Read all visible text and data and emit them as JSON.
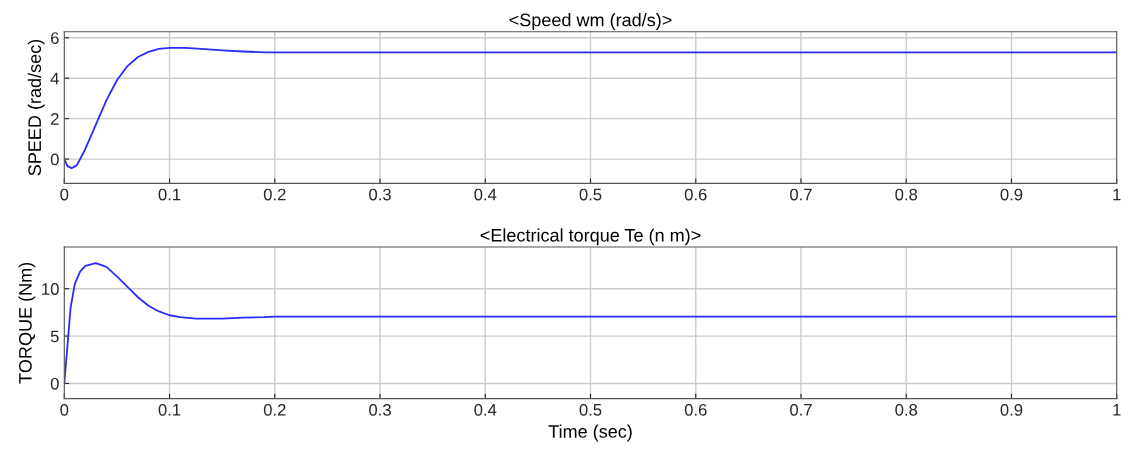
{
  "chart_data": [
    {
      "type": "line",
      "title": "<Speed wm (rad/s)>",
      "ylabel": "SPEED (rad/sec)",
      "xlim": [
        0,
        1
      ],
      "xticks": [
        0,
        0.1,
        0.2,
        0.3,
        0.4,
        0.5,
        0.6,
        0.7,
        0.8,
        0.9,
        1
      ],
      "ylim": [
        -1.2,
        6.3
      ],
      "yticks": [
        0,
        2,
        4,
        6
      ],
      "grid": true,
      "x": [
        0,
        0.003,
        0.007,
        0.012,
        0.02,
        0.03,
        0.04,
        0.05,
        0.06,
        0.07,
        0.08,
        0.09,
        0.1,
        0.115,
        0.13,
        0.15,
        0.17,
        0.19,
        0.2,
        1.0
      ],
      "series": [
        {
          "color": "#2b2bff",
          "values": [
            0,
            -0.35,
            -0.45,
            -0.3,
            0.5,
            1.7,
            2.9,
            3.9,
            4.6,
            5.05,
            5.3,
            5.45,
            5.5,
            5.5,
            5.45,
            5.38,
            5.32,
            5.28,
            5.28,
            5.28
          ]
        }
      ]
    },
    {
      "type": "line",
      "title": "<Electrical torque Te (n m)>",
      "ylabel": "TORQUE (Nm)",
      "xlabel": "Time (sec)",
      "xlim": [
        0,
        1
      ],
      "xticks": [
        0,
        0.1,
        0.2,
        0.3,
        0.4,
        0.5,
        0.6,
        0.7,
        0.8,
        0.9,
        1
      ],
      "ylim": [
        -1.6,
        14.4
      ],
      "yticks": [
        0,
        5,
        10
      ],
      "grid": true,
      "x": [
        0,
        0.003,
        0.006,
        0.01,
        0.015,
        0.02,
        0.03,
        0.04,
        0.05,
        0.06,
        0.07,
        0.08,
        0.09,
        0.1,
        0.11,
        0.125,
        0.15,
        0.17,
        0.19,
        0.2,
        1.0
      ],
      "series": [
        {
          "color": "#2b2bff",
          "values": [
            0,
            4,
            8,
            10.5,
            11.8,
            12.4,
            12.7,
            12.3,
            11.3,
            10.2,
            9.1,
            8.2,
            7.6,
            7.2,
            7.0,
            6.85,
            6.85,
            6.95,
            7.0,
            7.05,
            7.05
          ]
        }
      ]
    }
  ]
}
